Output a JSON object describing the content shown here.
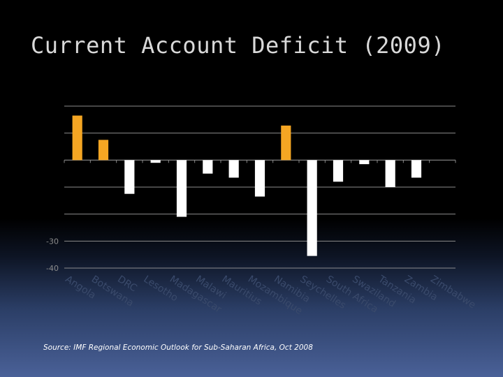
{
  "slide": {
    "title": "Current Account Deficit (2009)",
    "source": "Source: IMF Regional Economic Outlook for Sub-Saharan Africa, Oct 2008"
  },
  "colors": {
    "positive": "#f5a623",
    "negative": "#ffffff",
    "gridline": "#8c8c8c",
    "category_label": "#3a4a6b",
    "tick_label": "#8c8c8c"
  },
  "chart_data": {
    "type": "bar",
    "title": "Current Account Deficit (2009)",
    "xlabel": "",
    "ylabel": "",
    "ylim": [
      -40,
      20
    ],
    "grid": true,
    "legend": "none",
    "visible_ticks": [
      {
        "value": -30,
        "label": "-30"
      },
      {
        "value": -40,
        "label": "-40"
      }
    ],
    "categories": [
      "Angola",
      "Botswana",
      "DRC",
      "Lesotho",
      "Madagascar",
      "Malawi",
      "Mauritius",
      "Mozambique",
      "Namibia",
      "Seychelles",
      "South Africa",
      "Swaziland",
      "Tanzania",
      "Zambia",
      "Zimbabwe"
    ],
    "values": [
      16.5,
      7.5,
      -12.5,
      -1,
      -21,
      -5,
      -6.5,
      -13.5,
      12.8,
      -35.5,
      -8,
      -1.5,
      -10,
      -6.5,
      null
    ]
  }
}
